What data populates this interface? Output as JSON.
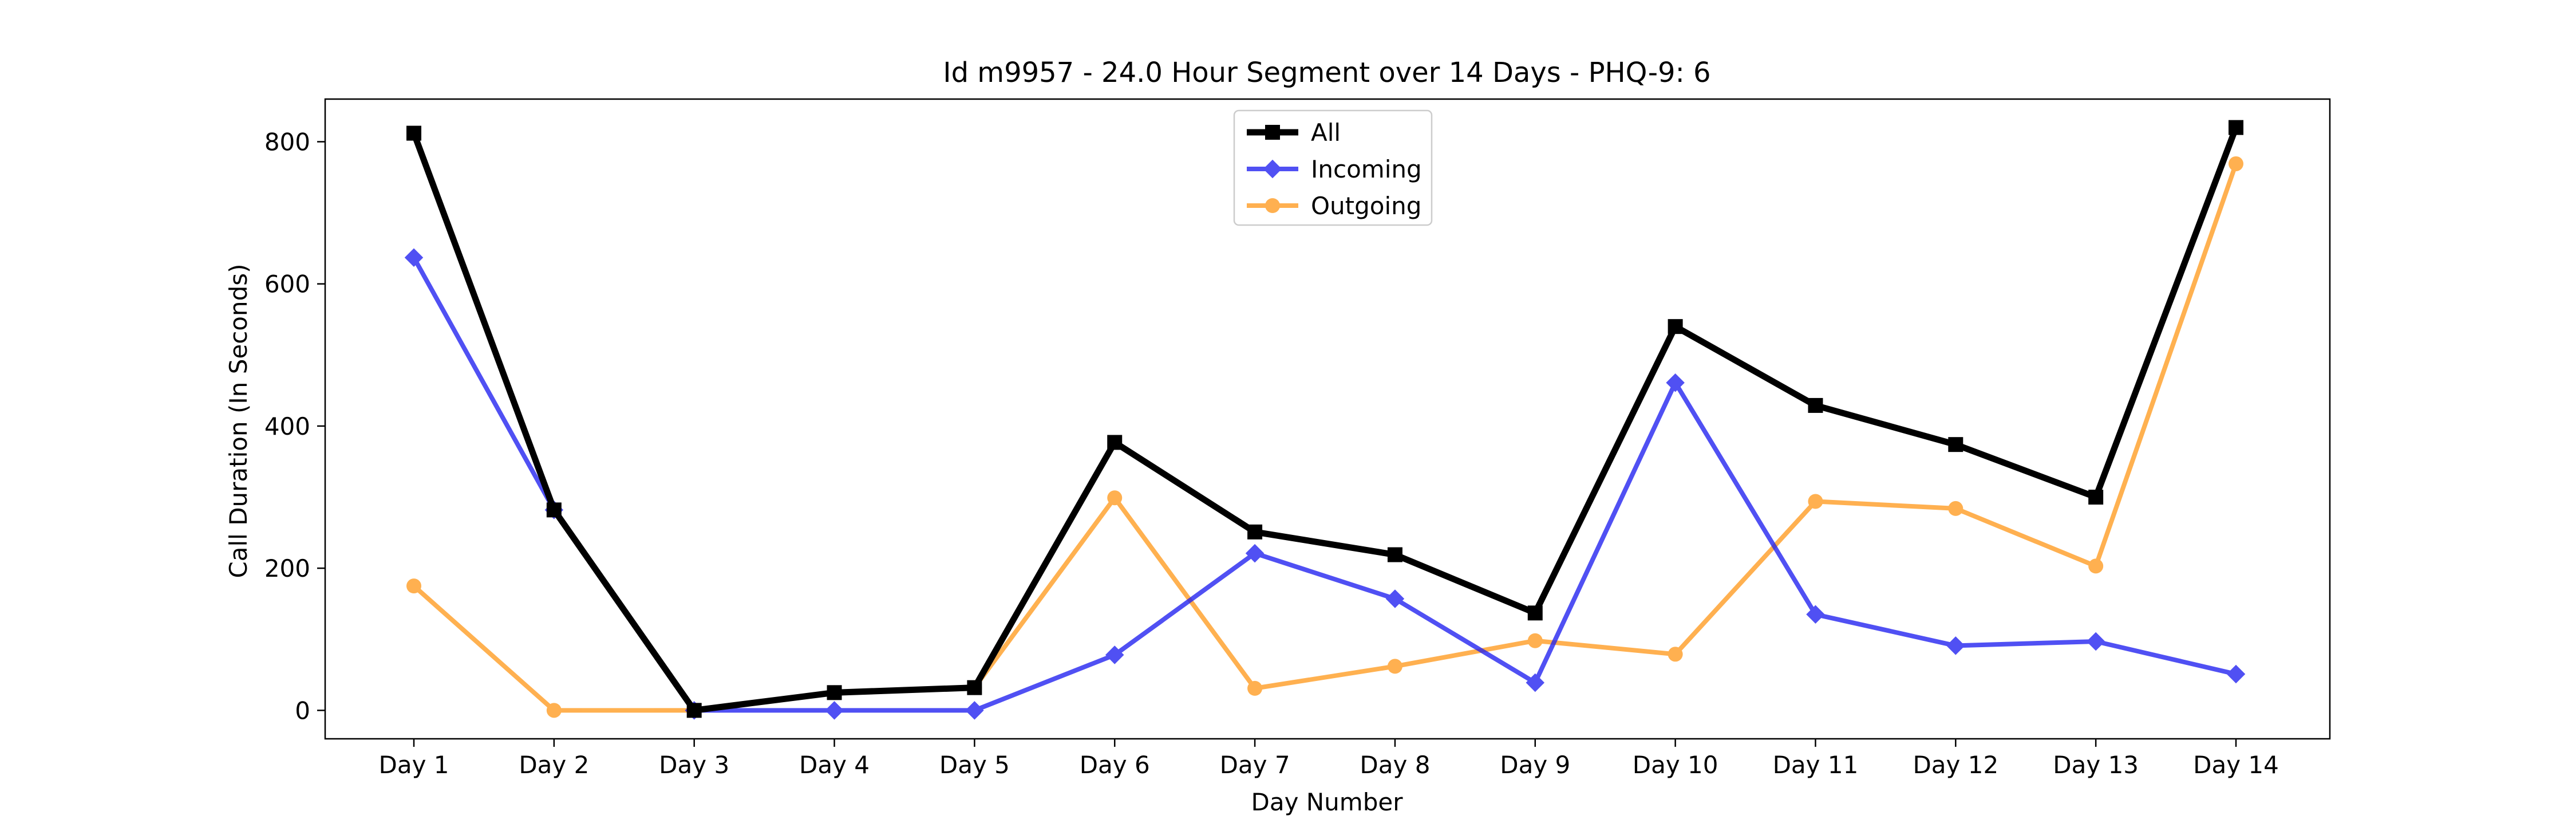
{
  "chart_data": {
    "type": "line",
    "title": "Id m9957 - 24.0 Hour Segment over 14 Days - PHQ-9: 6",
    "xlabel": "Day Number",
    "ylabel": "Call Duration (In Seconds)",
    "categories": [
      "Day 1",
      "Day 2",
      "Day 3",
      "Day 4",
      "Day 5",
      "Day 6",
      "Day 7",
      "Day 8",
      "Day 9",
      "Day 10",
      "Day 11",
      "Day 12",
      "Day 13",
      "Day 14"
    ],
    "ylim": [
      -40,
      860
    ],
    "yticks": [
      0,
      200,
      400,
      600,
      800
    ],
    "grid": false,
    "legend_position": "top-center",
    "series": [
      {
        "name": "All",
        "color": "#000000",
        "marker": "square",
        "values": [
          812,
          282,
          0,
          25,
          32,
          377,
          251,
          219,
          137,
          540,
          429,
          374,
          300,
          820
        ]
      },
      {
        "name": "Incoming",
        "color": "#1f1ff0",
        "marker": "diamond",
        "values": [
          637,
          282,
          0,
          0,
          0,
          78,
          221,
          157,
          39,
          461,
          135,
          91,
          97,
          51
        ]
      },
      {
        "name": "Outgoing",
        "color": "#ff9b1f",
        "marker": "circle",
        "values": [
          175,
          0,
          0,
          25,
          32,
          299,
          31,
          62,
          98,
          79,
          294,
          284,
          203,
          769
        ]
      }
    ]
  }
}
